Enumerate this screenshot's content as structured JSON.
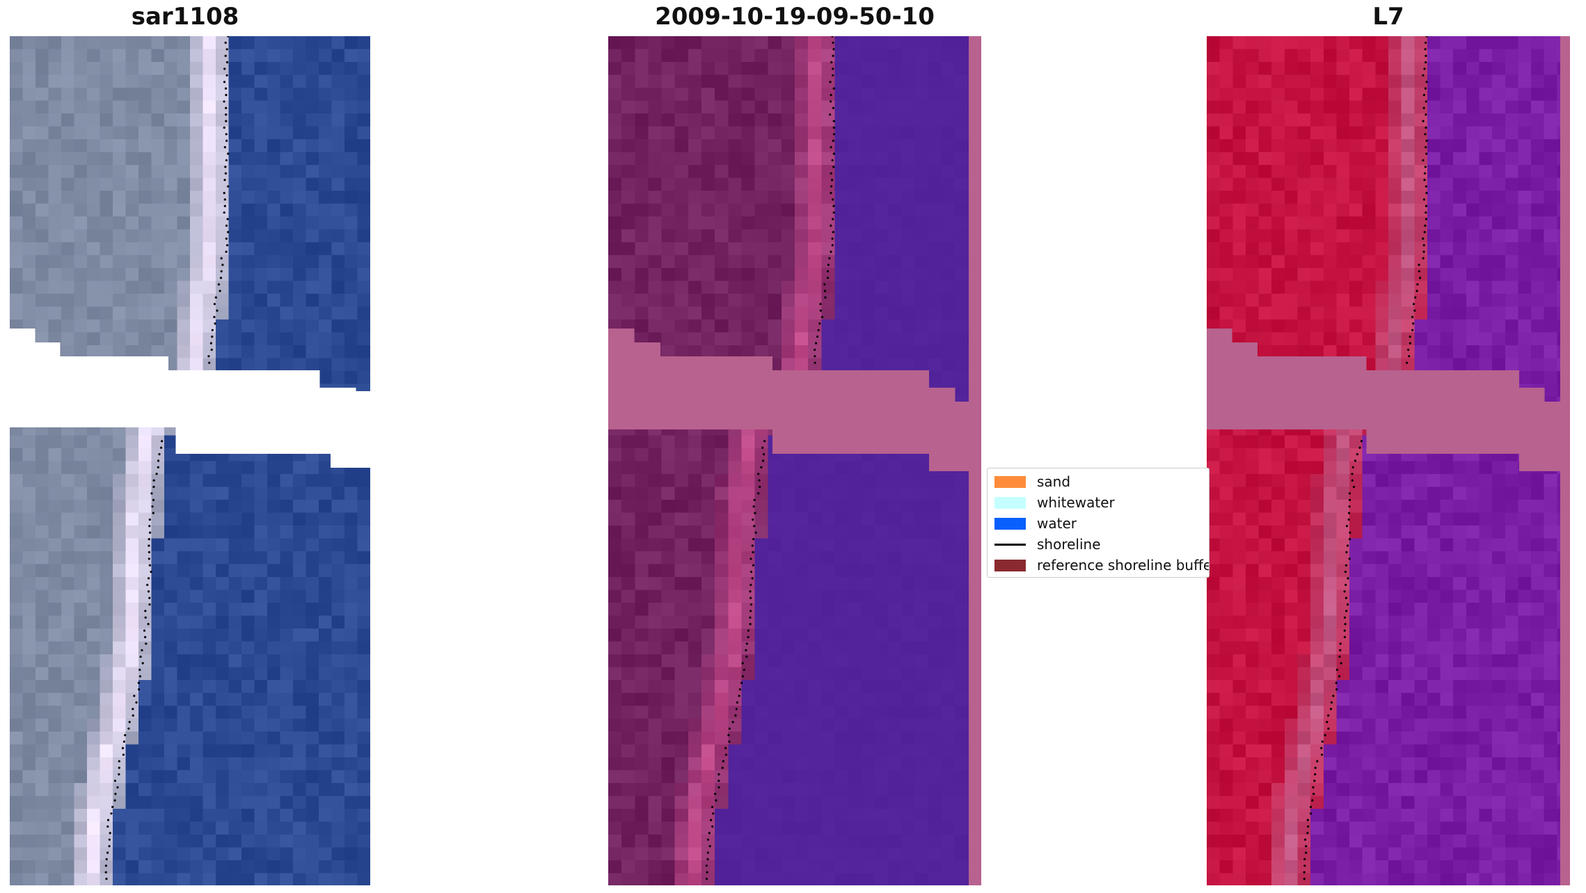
{
  "panels": [
    {
      "title": "sar1108",
      "kind": "rgb"
    },
    {
      "title": "2009-10-19-09-50-10",
      "kind": "classified"
    },
    {
      "title": "L7",
      "kind": "index"
    }
  ],
  "legend": {
    "items": [
      {
        "label": "sand",
        "color": "#ff8c3a",
        "type": "patch"
      },
      {
        "label": "whitewater",
        "color": "#c6ffff",
        "type": "patch"
      },
      {
        "label": "water",
        "color": "#0a5fff",
        "type": "patch"
      },
      {
        "label": "shoreline",
        "color": "#000000",
        "type": "line"
      },
      {
        "label": "reference shoreline buffer",
        "color": "#8a2a2f",
        "type": "patch"
      }
    ]
  },
  "colors": {
    "no_data_mask": "#b8628f",
    "rgb_water": "#2c4a93",
    "rgb_sand": "#7f8aa3",
    "rgb_whitewater": "#f4e8ff",
    "classified_water": "#52239a",
    "classified_land": "#71225f",
    "index_land": "#c41340",
    "index_water": "#7a1ea5",
    "shoreline_points": "#000000"
  }
}
